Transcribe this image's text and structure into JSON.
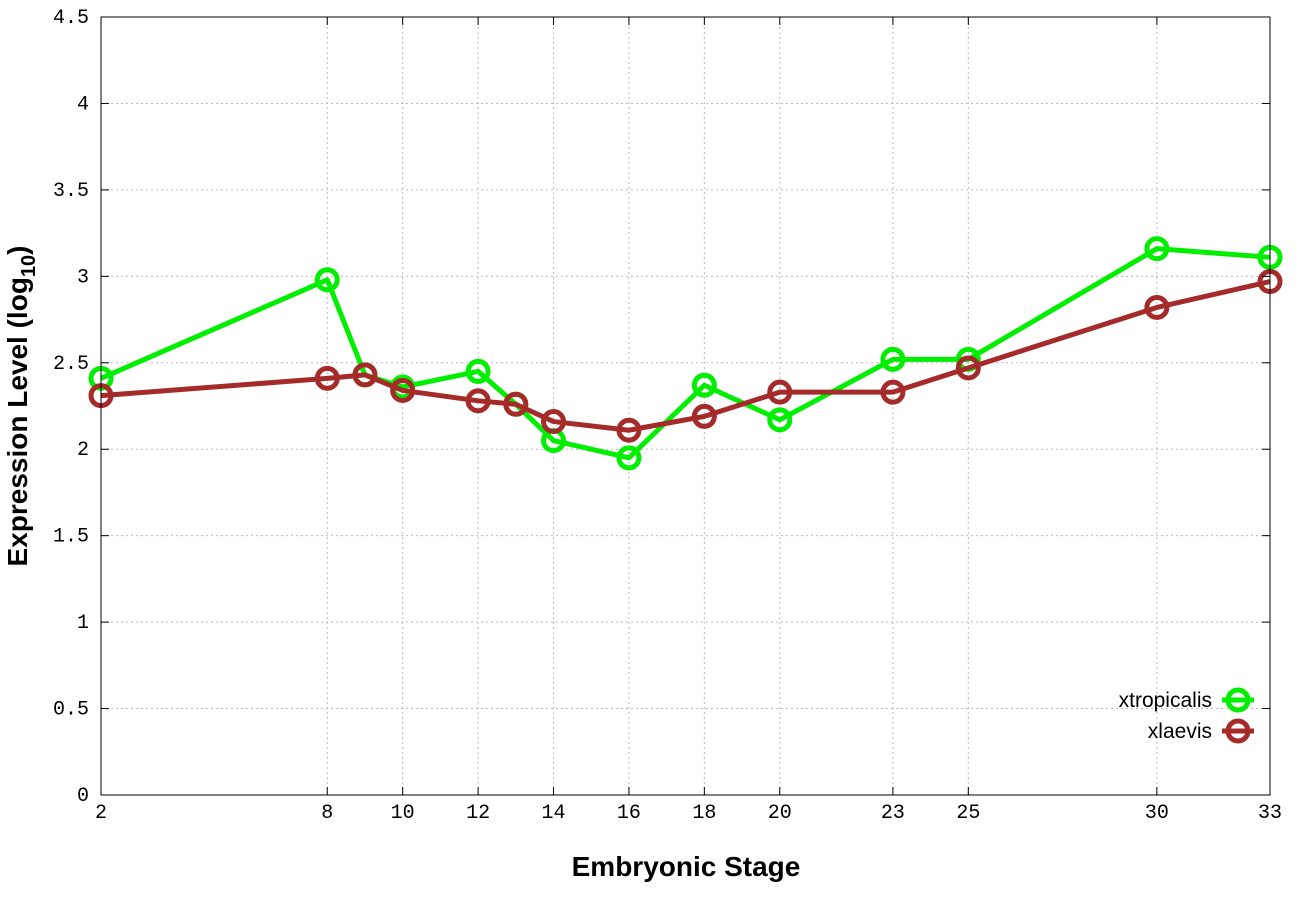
{
  "chart_data": {
    "type": "line",
    "title": "",
    "xlabel": "Embryonic Stage",
    "ylabel": "Expression Level (log",
    "ylabel_sub": "10",
    "ylabel_end": ")",
    "xlim": [
      2,
      33
    ],
    "ylim": [
      0,
      4.5
    ],
    "grid": true,
    "legend_position": "bottom-right",
    "x_ticks": [
      2,
      8,
      10,
      12,
      14,
      16,
      18,
      20,
      23,
      25,
      30,
      33
    ],
    "y_ticks": [
      0,
      0.5,
      1,
      1.5,
      2,
      2.5,
      3,
      3.5,
      4,
      4.5
    ],
    "y_tick_labels": [
      "0",
      "0.5",
      "1",
      "1.5",
      "2",
      "2.5",
      "3",
      "3.5",
      "4",
      "4.5"
    ],
    "x": [
      2,
      8,
      9,
      10,
      12,
      13,
      14,
      16,
      18,
      20,
      23,
      25,
      30,
      33
    ],
    "series": [
      {
        "name": "xtropicalis",
        "color": "#00ee00",
        "values": [
          2.41,
          2.98,
          2.43,
          2.36,
          2.45,
          2.26,
          2.05,
          1.95,
          2.37,
          2.17,
          2.52,
          2.52,
          3.16,
          3.11
        ]
      },
      {
        "name": "xlaevis",
        "color": "#a52a2a",
        "values": [
          2.31,
          2.41,
          2.43,
          2.34,
          2.28,
          2.26,
          2.16,
          2.11,
          2.19,
          2.33,
          2.33,
          2.47,
          2.82,
          2.97
        ]
      }
    ]
  }
}
